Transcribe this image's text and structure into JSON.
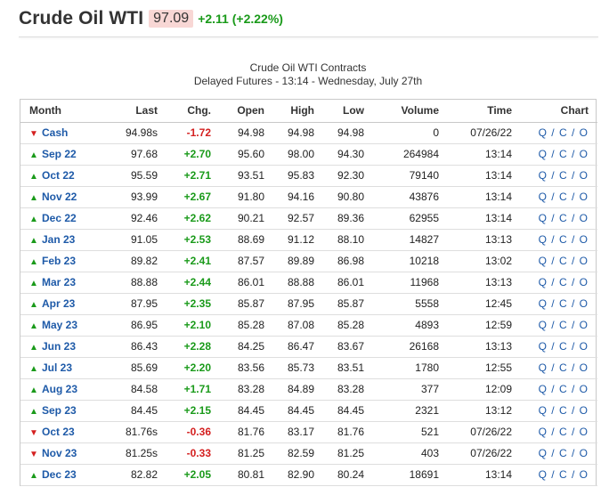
{
  "header": {
    "title": "Crude Oil WTI",
    "price": "97.09",
    "change": "+2.11 (+2.22%)"
  },
  "caption": {
    "line1": "Crude Oil WTI Contracts",
    "line2": "Delayed Futures - 13:14 - Wednesday, July 27th"
  },
  "colors": {
    "up": "#1a9a1a",
    "down": "#d42020",
    "link": "#1e5aa8",
    "price_bg": "#f8d7d5"
  },
  "table": {
    "columns": [
      "Month",
      "Last",
      "Chg.",
      "Open",
      "High",
      "Low",
      "Volume",
      "Time",
      "Chart"
    ],
    "chart_links": [
      "Q",
      "C",
      "O"
    ],
    "rows": [
      {
        "month": "Cash",
        "dir": "down",
        "last": "94.98s",
        "chg": "-1.72",
        "open": "94.98",
        "high": "94.98",
        "low": "94.98",
        "volume": "0",
        "time": "07/26/22"
      },
      {
        "month": "Sep 22",
        "dir": "up",
        "last": "97.68",
        "chg": "+2.70",
        "open": "95.60",
        "high": "98.00",
        "low": "94.30",
        "volume": "264984",
        "time": "13:14"
      },
      {
        "month": "Oct 22",
        "dir": "up",
        "last": "95.59",
        "chg": "+2.71",
        "open": "93.51",
        "high": "95.83",
        "low": "92.30",
        "volume": "79140",
        "time": "13:14"
      },
      {
        "month": "Nov 22",
        "dir": "up",
        "last": "93.99",
        "chg": "+2.67",
        "open": "91.80",
        "high": "94.16",
        "low": "90.80",
        "volume": "43876",
        "time": "13:14"
      },
      {
        "month": "Dec 22",
        "dir": "up",
        "last": "92.46",
        "chg": "+2.62",
        "open": "90.21",
        "high": "92.57",
        "low": "89.36",
        "volume": "62955",
        "time": "13:14"
      },
      {
        "month": "Jan 23",
        "dir": "up",
        "last": "91.05",
        "chg": "+2.53",
        "open": "88.69",
        "high": "91.12",
        "low": "88.10",
        "volume": "14827",
        "time": "13:13"
      },
      {
        "month": "Feb 23",
        "dir": "up",
        "last": "89.82",
        "chg": "+2.41",
        "open": "87.57",
        "high": "89.89",
        "low": "86.98",
        "volume": "10218",
        "time": "13:02"
      },
      {
        "month": "Mar 23",
        "dir": "up",
        "last": "88.88",
        "chg": "+2.44",
        "open": "86.01",
        "high": "88.88",
        "low": "86.01",
        "volume": "11968",
        "time": "13:13"
      },
      {
        "month": "Apr 23",
        "dir": "up",
        "last": "87.95",
        "chg": "+2.35",
        "open": "85.87",
        "high": "87.95",
        "low": "85.87",
        "volume": "5558",
        "time": "12:45"
      },
      {
        "month": "May 23",
        "dir": "up",
        "last": "86.95",
        "chg": "+2.10",
        "open": "85.28",
        "high": "87.08",
        "low": "85.28",
        "volume": "4893",
        "time": "12:59"
      },
      {
        "month": "Jun 23",
        "dir": "up",
        "last": "86.43",
        "chg": "+2.28",
        "open": "84.25",
        "high": "86.47",
        "low": "83.67",
        "volume": "26168",
        "time": "13:13"
      },
      {
        "month": "Jul 23",
        "dir": "up",
        "last": "85.69",
        "chg": "+2.20",
        "open": "83.56",
        "high": "85.73",
        "low": "83.51",
        "volume": "1780",
        "time": "12:55"
      },
      {
        "month": "Aug 23",
        "dir": "up",
        "last": "84.58",
        "chg": "+1.71",
        "open": "83.28",
        "high": "84.89",
        "low": "83.28",
        "volume": "377",
        "time": "12:09"
      },
      {
        "month": "Sep 23",
        "dir": "up",
        "last": "84.45",
        "chg": "+2.15",
        "open": "84.45",
        "high": "84.45",
        "low": "84.45",
        "volume": "2321",
        "time": "13:12"
      },
      {
        "month": "Oct 23",
        "dir": "down",
        "last": "81.76s",
        "chg": "-0.36",
        "open": "81.76",
        "high": "83.17",
        "low": "81.76",
        "volume": "521",
        "time": "07/26/22"
      },
      {
        "month": "Nov 23",
        "dir": "down",
        "last": "81.25s",
        "chg": "-0.33",
        "open": "81.25",
        "high": "82.59",
        "low": "81.25",
        "volume": "403",
        "time": "07/26/22"
      },
      {
        "month": "Dec 23",
        "dir": "up",
        "last": "82.82",
        "chg": "+2.05",
        "open": "80.81",
        "high": "82.90",
        "low": "80.24",
        "volume": "18691",
        "time": "13:14"
      }
    ]
  }
}
